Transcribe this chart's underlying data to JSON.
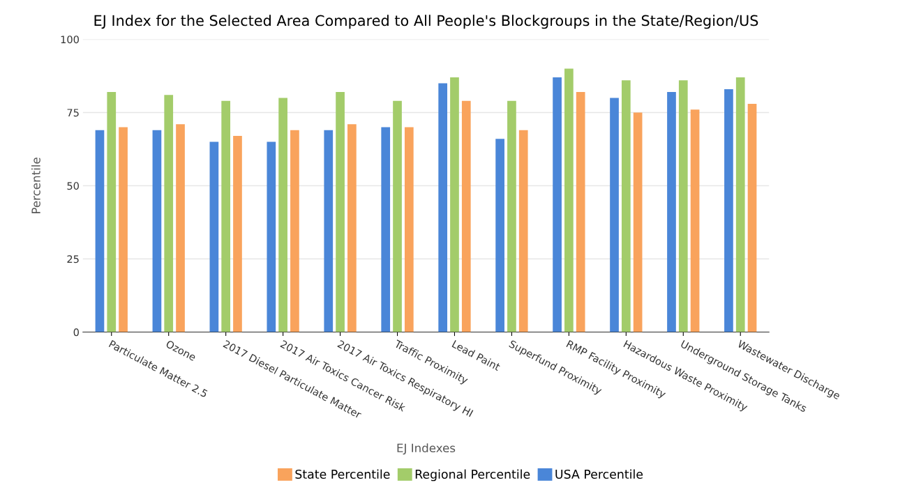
{
  "chart_data": {
    "type": "bar",
    "title": "EJ Index for the Selected Area Compared to All People's Blockgroups in the State/Region/US",
    "xlabel": "EJ Indexes",
    "ylabel": "Percentile",
    "categories": [
      "Particulate Matter 2.5",
      "Ozone",
      "2017 Diesel Particulate Matter",
      "2017 Air Toxics Cancer Risk",
      "2017 Air Toxics Respiratory HI",
      "Traffic Proximity",
      "Lead Paint",
      "Superfund Proximity",
      "RMP Facility Proximity",
      "Hazardous Waste Proximity",
      "Underground Storage Tanks",
      "Wastewater Discharge"
    ],
    "series": [
      {
        "name": "USA Percentile",
        "color": "#4a86d8",
        "values": [
          69,
          69,
          65,
          65,
          69,
          70,
          85,
          66,
          87,
          80,
          82,
          83
        ]
      },
      {
        "name": "Regional Percentile",
        "color": "#a3cc6a",
        "values": [
          82,
          81,
          79,
          80,
          82,
          79,
          87,
          79,
          90,
          86,
          86,
          87
        ]
      },
      {
        "name": "State Percentile",
        "color": "#f9a35c",
        "values": [
          70,
          71,
          67,
          69,
          71,
          70,
          79,
          69,
          82,
          75,
          76,
          78
        ]
      }
    ],
    "ylim": [
      0,
      100
    ],
    "yticks": [
      0,
      25,
      50,
      75,
      100
    ],
    "grid": "y",
    "legend": "bottom"
  }
}
